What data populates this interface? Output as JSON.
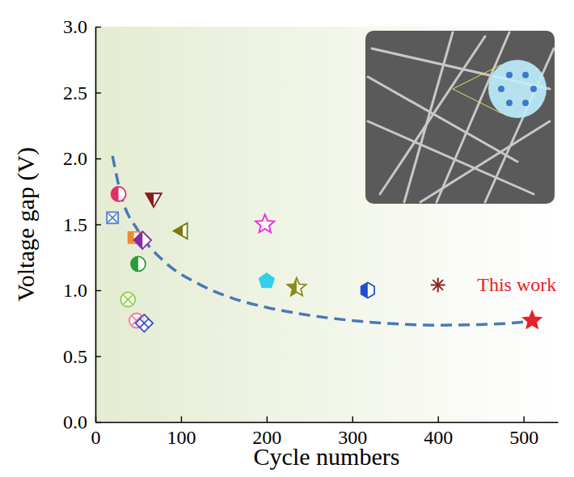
{
  "chart_data": {
    "type": "scatter",
    "x_label": "Cycle numbers",
    "y_label": "Voltage gap (V)",
    "xlim": [
      0,
      540
    ],
    "xticks": [
      0,
      100,
      200,
      300,
      400,
      500
    ],
    "ylim": [
      0,
      3
    ],
    "yticks": [
      {
        "value": 0,
        "label": "0.0"
      },
      0.5,
      {
        "value": 1,
        "label": "1.0"
      },
      1.5,
      {
        "value": 2,
        "label": "2.0"
      },
      2.5,
      {
        "value": 3,
        "label": "3.0"
      }
    ],
    "annotations": [
      {
        "text": "This work",
        "x": 510,
        "y": 0.77,
        "color": "#e8202a"
      }
    ],
    "series": [
      {
        "type": "line",
        "line_style": "dashed",
        "color": "#4a78b8",
        "x": [
          20,
          30,
          50,
          80,
          120,
          160,
          200,
          250,
          300,
          350,
          400,
          450,
          500,
          510
        ],
        "values": [
          2.02,
          1.72,
          1.45,
          1.22,
          1.05,
          0.94,
          0.87,
          0.81,
          0.77,
          0.745,
          0.735,
          0.74,
          0.76,
          0.77
        ]
      },
      {
        "type": "scatter",
        "marker": "square-x",
        "color": "#4a7fd0",
        "x": [
          20
        ],
        "values": [
          1.55
        ]
      },
      {
        "type": "scatter",
        "marker": "circle-half",
        "color": "#e0306a",
        "x": [
          27
        ],
        "values": [
          1.73
        ]
      },
      {
        "type": "scatter",
        "marker": "circle-x",
        "color": "#8fd04a",
        "x": [
          38
        ],
        "values": [
          0.93
        ]
      },
      {
        "type": "scatter",
        "marker": "square-half",
        "color": "#f08a30",
        "x": [
          45
        ],
        "values": [
          1.4
        ]
      },
      {
        "type": "scatter",
        "marker": "circle-x",
        "color": "#f07aa0",
        "x": [
          48
        ],
        "values": [
          0.77
        ]
      },
      {
        "type": "scatter",
        "marker": "circle-half",
        "color": "#2a9a3a",
        "x": [
          50
        ],
        "values": [
          1.2
        ]
      },
      {
        "type": "scatter",
        "marker": "diamond-half",
        "color": "#8a2aa0",
        "x": [
          55
        ],
        "values": [
          1.38
        ]
      },
      {
        "type": "scatter",
        "marker": "diamond-x",
        "color": "#3a50d0",
        "x": [
          57
        ],
        "values": [
          0.75
        ]
      },
      {
        "type": "scatter",
        "marker": "triangle-down-half",
        "color": "#8a1a1a",
        "x": [
          68
        ],
        "values": [
          1.7
        ]
      },
      {
        "type": "scatter",
        "marker": "triangle-left-half",
        "color": "#7a7a10",
        "x": [
          102
        ],
        "values": [
          1.45
        ]
      },
      {
        "type": "scatter",
        "marker": "star-open",
        "color": "#f030e0",
        "x": [
          198
        ],
        "values": [
          1.5
        ]
      },
      {
        "type": "scatter",
        "marker": "pentagon",
        "color": "#30d0e8",
        "x": [
          200
        ],
        "values": [
          1.07
        ]
      },
      {
        "type": "scatter",
        "marker": "star-half",
        "color": "#8a8a20",
        "x": [
          235
        ],
        "values": [
          1.02
        ]
      },
      {
        "type": "scatter",
        "marker": "hexagon-half",
        "color": "#2050d0",
        "x": [
          318
        ],
        "values": [
          1.0
        ]
      },
      {
        "type": "scatter",
        "marker": "asterisk",
        "color": "#8a2020",
        "x": [
          400
        ],
        "values": [
          1.04
        ]
      },
      {
        "type": "scatter",
        "marker": "star",
        "color": "#e8202a",
        "x": [
          510
        ],
        "values": [
          0.77
        ]
      }
    ]
  }
}
